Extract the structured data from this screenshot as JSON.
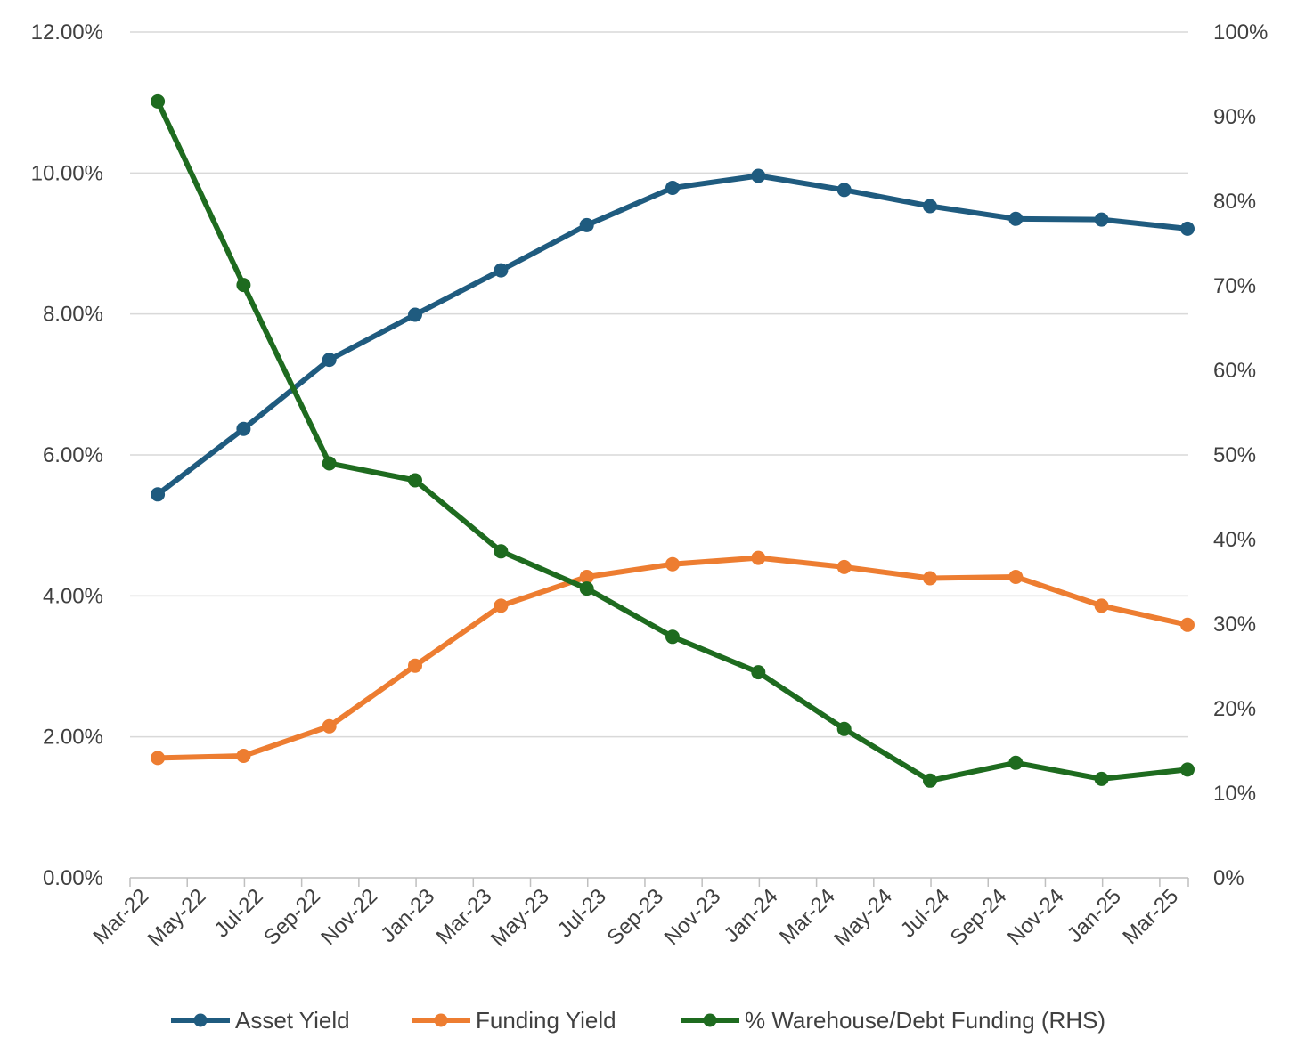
{
  "chart_data": {
    "type": "line",
    "categories": [
      "Mar-22",
      "May-22",
      "Jul-22",
      "Sep-22",
      "Nov-22",
      "Jan-23",
      "Mar-23",
      "May-23",
      "Jul-23",
      "Sep-23",
      "Nov-23",
      "Jan-24",
      "Mar-24",
      "May-24",
      "Jul-24",
      "Sep-24",
      "Nov-24",
      "Jan-25",
      "Mar-25"
    ],
    "x_start": "2022-03",
    "x_end": "2025-04",
    "y_left": {
      "ylim": [
        0,
        12
      ],
      "ticks": [
        0,
        2,
        4,
        6,
        8,
        10,
        12
      ],
      "tick_labels": [
        "0.00%",
        "2.00%",
        "4.00%",
        "6.00%",
        "8.00%",
        "10.00%",
        "12.00%"
      ]
    },
    "y_right": {
      "ylim": [
        0,
        100
      ],
      "ticks": [
        0,
        10,
        20,
        30,
        40,
        50,
        60,
        70,
        80,
        90,
        100
      ],
      "tick_labels": [
        "0%",
        "10%",
        "20%",
        "30%",
        "40%",
        "50%",
        "60%",
        "70%",
        "80%",
        "90%",
        "100%"
      ]
    },
    "grid": "horizontal",
    "legend_position": "bottom",
    "series": [
      {
        "name": "Asset Yield",
        "axis": "left",
        "color": "#1f5b7f",
        "x": [
          "2022-03-31",
          "2022-06-30",
          "2022-09-30",
          "2022-12-31",
          "2023-03-31",
          "2023-06-30",
          "2023-09-30",
          "2023-12-31",
          "2024-03-31",
          "2024-06-30",
          "2024-09-30",
          "2024-12-31",
          "2025-03-31"
        ],
        "values": [
          5.44,
          6.37,
          7.35,
          7.99,
          8.62,
          9.26,
          9.79,
          9.96,
          9.76,
          9.53,
          9.35,
          9.34,
          9.21
        ]
      },
      {
        "name": "Funding Yield",
        "axis": "left",
        "color": "#ed7d31",
        "x": [
          "2022-03-31",
          "2022-06-30",
          "2022-09-30",
          "2022-12-31",
          "2023-03-31",
          "2023-06-30",
          "2023-09-30",
          "2023-12-31",
          "2024-03-31",
          "2024-06-30",
          "2024-09-30",
          "2024-12-31",
          "2025-03-31"
        ],
        "values": [
          1.7,
          1.73,
          2.15,
          3.01,
          3.86,
          4.27,
          4.45,
          4.54,
          4.41,
          4.25,
          4.27,
          3.86,
          3.59
        ]
      },
      {
        "name": "% Warehouse/Debt Funding (RHS)",
        "axis": "right",
        "color": "#1e6b1f",
        "x": [
          "2022-03-31",
          "2022-06-30",
          "2022-09-30",
          "2022-12-31",
          "2023-03-31",
          "2023-06-30",
          "2023-09-30",
          "2023-12-31",
          "2024-03-31",
          "2024-06-30",
          "2024-09-30",
          "2024-12-31",
          "2025-03-31"
        ],
        "values": [
          91.8,
          70.1,
          49.0,
          47.0,
          38.6,
          34.2,
          28.5,
          24.3,
          17.6,
          11.5,
          13.6,
          11.7,
          12.8
        ]
      }
    ]
  }
}
